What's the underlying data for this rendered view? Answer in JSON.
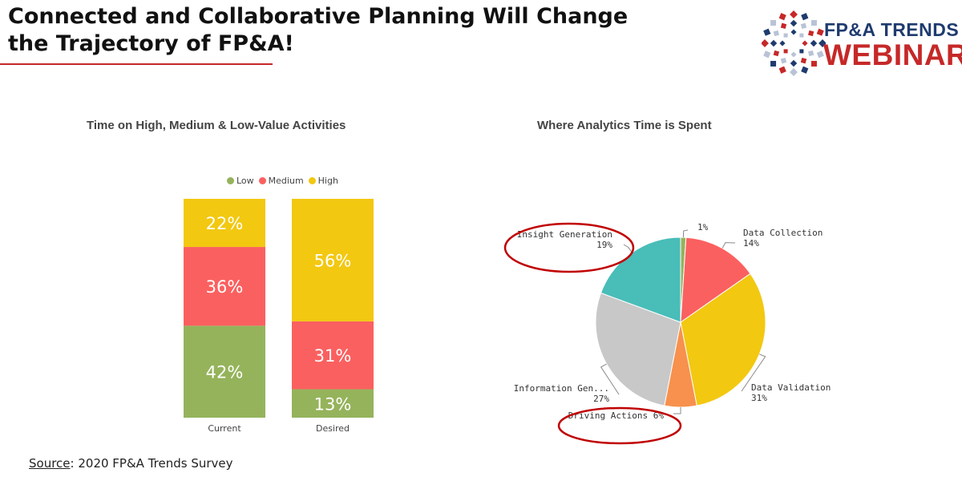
{
  "slide": {
    "title_line1": "Connected and Collaborative Planning Will Change",
    "title_line2": "the Trajectory of FP&A!",
    "logo_line1": "FP&A TRENDS",
    "logo_line2": "WEBINAR",
    "source_label": "Source",
    "source_text": ": 2020 FP&A Trends Survey"
  },
  "colors": {
    "low": "#95b35b",
    "medium": "#fb6060",
    "high": "#f2c811",
    "insight": "#49bdb8",
    "data_collection": "#fb6060",
    "data_validation": "#f2c811",
    "driving_actions": "#f7914d",
    "information_gen": "#c8c8c8",
    "other": "#95b35b",
    "highlight_ring": "#c00000"
  },
  "chart_data": [
    {
      "type": "bar",
      "stacked": true,
      "percent": true,
      "title": "Time on High, Medium & Low-Value Activities",
      "legend_position": "top-center",
      "categories": [
        "Current",
        "Desired"
      ],
      "series": [
        {
          "name": "Low",
          "values": [
            42,
            13
          ]
        },
        {
          "name": "Medium",
          "values": [
            36,
            31
          ]
        },
        {
          "name": "High",
          "values": [
            22,
            56
          ]
        }
      ],
      "data_labels": [
        [
          "42%",
          "36%",
          "22%"
        ],
        [
          "13%",
          "31%",
          "56%"
        ]
      ],
      "ylim": [
        0,
        100
      ]
    },
    {
      "type": "pie",
      "title": "Where Analytics Time is Spent",
      "slices": [
        {
          "label": "",
          "value": 1,
          "text": "1%"
        },
        {
          "label": "Data Collection",
          "value": 14,
          "text": "14%"
        },
        {
          "label": "Data Validation",
          "value": 31,
          "text": "31%"
        },
        {
          "label": "Driving Actions",
          "value": 6,
          "text": "6%"
        },
        {
          "label": "Information Gen...",
          "value": 27,
          "text": "27%"
        },
        {
          "label": "Insight Generation",
          "value": 19,
          "text": "19%"
        }
      ],
      "highlighted": [
        "Insight Generation",
        "Driving Actions"
      ]
    }
  ]
}
